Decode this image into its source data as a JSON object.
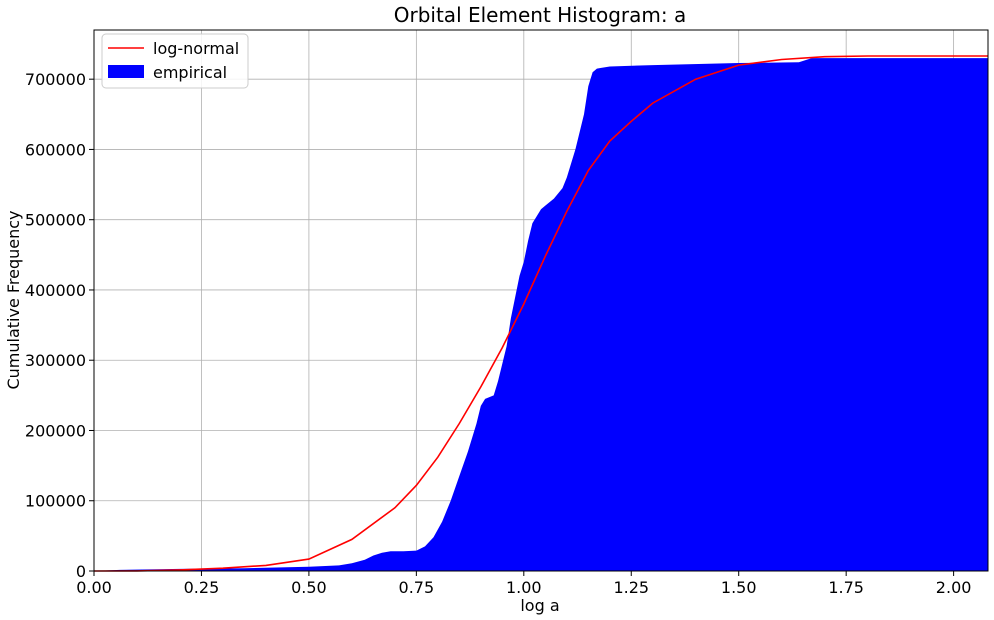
{
  "chart_data": {
    "type": "area",
    "title": "Orbital Element Histogram: a",
    "xlabel": "log a",
    "ylabel": "Cumulative Frequency",
    "xlim": [
      0.0,
      2.08
    ],
    "ylim": [
      0,
      770000
    ],
    "x_ticks": [
      0.0,
      0.25,
      0.5,
      0.75,
      1.0,
      1.25,
      1.5,
      1.75,
      2.0
    ],
    "x_tick_labels": [
      "0.00",
      "0.25",
      "0.50",
      "0.75",
      "1.00",
      "1.25",
      "1.50",
      "1.75",
      "2.00"
    ],
    "y_ticks": [
      0,
      100000,
      200000,
      300000,
      400000,
      500000,
      600000,
      700000
    ],
    "y_tick_labels": [
      "0",
      "100000",
      "200000",
      "300000",
      "400000",
      "500000",
      "600000",
      "700000"
    ],
    "grid": true,
    "legend_position": "top-left",
    "series": [
      {
        "name": "log-normal",
        "kind": "line",
        "color": "#ff0000",
        "x": [
          0.0,
          0.1,
          0.2,
          0.3,
          0.4,
          0.5,
          0.6,
          0.7,
          0.75,
          0.8,
          0.85,
          0.9,
          0.95,
          1.0,
          1.05,
          1.1,
          1.15,
          1.2,
          1.25,
          1.3,
          1.4,
          1.5,
          1.6,
          1.7,
          1.8,
          1.9,
          2.0,
          2.08
        ],
        "y": [
          0,
          200,
          1500,
          4000,
          8000,
          17000,
          45000,
          90000,
          122000,
          162000,
          210000,
          262000,
          318000,
          380000,
          448000,
          512000,
          570000,
          612000,
          640000,
          666000,
          700000,
          720000,
          728000,
          732000,
          733000,
          733000,
          733000,
          733000
        ]
      },
      {
        "name": "empirical",
        "kind": "area",
        "color": "#0000ff",
        "x": [
          0.0,
          0.06,
          0.2,
          0.35,
          0.5,
          0.57,
          0.6,
          0.63,
          0.65,
          0.67,
          0.69,
          0.72,
          0.75,
          0.77,
          0.79,
          0.81,
          0.83,
          0.85,
          0.87,
          0.89,
          0.9,
          0.91,
          0.93,
          0.94,
          0.96,
          0.97,
          0.98,
          0.99,
          1.0,
          1.01,
          1.02,
          1.03,
          1.04,
          1.05,
          1.07,
          1.09,
          1.1,
          1.12,
          1.14,
          1.15,
          1.16,
          1.17,
          1.18,
          1.2,
          1.3,
          1.5,
          1.64,
          1.65,
          1.67,
          1.7,
          2.0,
          2.08
        ],
        "y": [
          0,
          1500,
          3000,
          4000,
          6000,
          8000,
          11000,
          16000,
          22000,
          26000,
          28000,
          28000,
          29000,
          35000,
          48000,
          70000,
          100000,
          135000,
          170000,
          210000,
          235000,
          245000,
          250000,
          270000,
          320000,
          360000,
          390000,
          420000,
          440000,
          470000,
          495000,
          505000,
          515000,
          520000,
          530000,
          545000,
          560000,
          600000,
          650000,
          690000,
          710000,
          715000,
          716000,
          718000,
          720000,
          723000,
          724000,
          726000,
          730000,
          730000,
          730000,
          730000
        ]
      }
    ]
  }
}
